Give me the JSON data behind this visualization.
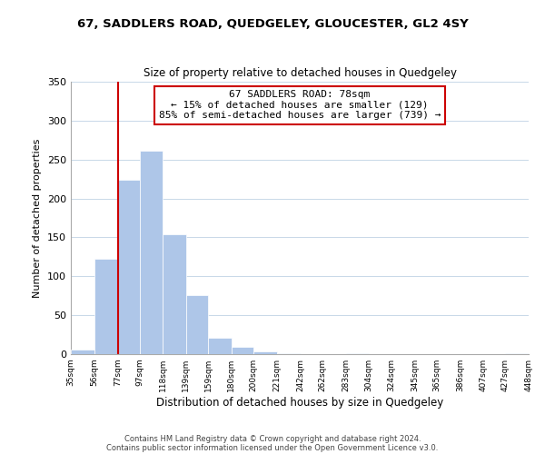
{
  "title": "67, SADDLERS ROAD, QUEDGELEY, GLOUCESTER, GL2 4SY",
  "subtitle": "Size of property relative to detached houses in Quedgeley",
  "xlabel": "Distribution of detached houses by size in Quedgeley",
  "ylabel": "Number of detached properties",
  "bin_edges": [
    35,
    56,
    77,
    97,
    118,
    139,
    159,
    180,
    200,
    221,
    242,
    262,
    283,
    304,
    324,
    345,
    365,
    386,
    407,
    427,
    448
  ],
  "bar_heights": [
    6,
    123,
    224,
    261,
    154,
    76,
    21,
    9,
    3,
    1,
    0,
    0,
    1,
    0,
    0,
    0,
    0,
    0,
    0,
    1
  ],
  "bar_color": "#aec6e8",
  "vline_x": 78,
  "vline_color": "#cc0000",
  "annotation_title": "67 SADDLERS ROAD: 78sqm",
  "annotation_line1": "← 15% of detached houses are smaller (129)",
  "annotation_line2": "85% of semi-detached houses are larger (739) →",
  "annotation_box_color": "#ffffff",
  "annotation_box_edge": "#cc0000",
  "tick_labels": [
    "35sqm",
    "56sqm",
    "77sqm",
    "97sqm",
    "118sqm",
    "139sqm",
    "159sqm",
    "180sqm",
    "200sqm",
    "221sqm",
    "242sqm",
    "262sqm",
    "283sqm",
    "304sqm",
    "324sqm",
    "345sqm",
    "365sqm",
    "386sqm",
    "407sqm",
    "427sqm",
    "448sqm"
  ],
  "ylim": [
    0,
    350
  ],
  "yticks": [
    0,
    50,
    100,
    150,
    200,
    250,
    300,
    350
  ],
  "footer1": "Contains HM Land Registry data © Crown copyright and database right 2024.",
  "footer2": "Contains public sector information licensed under the Open Government Licence v3.0.",
  "background_color": "#ffffff",
  "grid_color": "#c8d8e8"
}
